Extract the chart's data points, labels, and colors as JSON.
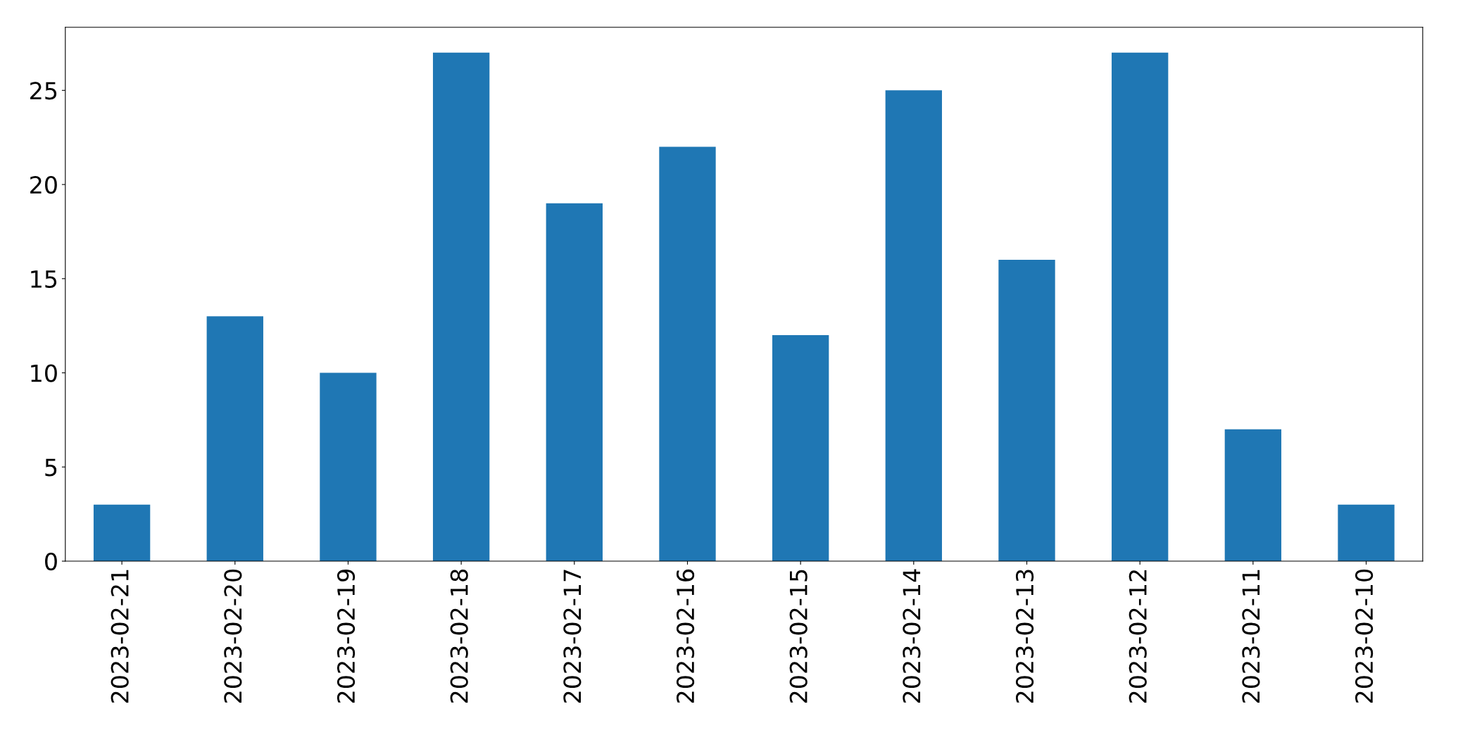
{
  "chart_data": {
    "type": "bar",
    "categories": [
      "2023-02-21",
      "2023-02-20",
      "2023-02-19",
      "2023-02-18",
      "2023-02-17",
      "2023-02-16",
      "2023-02-15",
      "2023-02-14",
      "2023-02-13",
      "2023-02-12",
      "2023-02-11",
      "2023-02-10"
    ],
    "values": [
      3,
      13,
      10,
      27,
      19,
      22,
      12,
      25,
      16,
      27,
      7,
      3
    ],
    "color": "#1f77b4",
    "ylim": [
      0,
      28.35
    ],
    "yticks": [
      0,
      5,
      10,
      15,
      20,
      25
    ],
    "grid": false
  }
}
